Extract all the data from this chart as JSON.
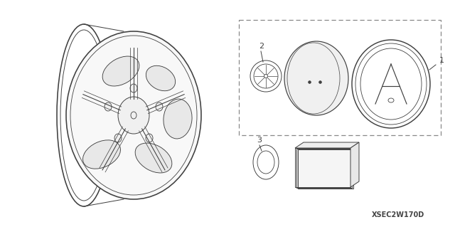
{
  "background_color": "#ffffff",
  "line_color": "#404040",
  "lw": 0.85,
  "diagram_code_text": "XSEC2W170D",
  "diagram_code_fontsize": 7
}
